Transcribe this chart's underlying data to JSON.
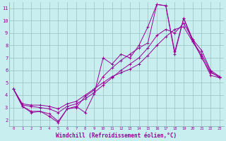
{
  "xlabel": "Windchill (Refroidissement éolien,°C)",
  "xlim": [
    -0.5,
    23.5
  ],
  "ylim": [
    1.5,
    11.5
  ],
  "xticks": [
    0,
    1,
    2,
    3,
    4,
    5,
    6,
    7,
    8,
    9,
    10,
    11,
    12,
    13,
    14,
    15,
    16,
    17,
    18,
    19,
    20,
    21,
    22,
    23
  ],
  "yticks": [
    2,
    3,
    4,
    5,
    6,
    7,
    8,
    9,
    10,
    11
  ],
  "bg_color": "#c8eef0",
  "grid_color": "#9bbfbf",
  "line_color": "#990099",
  "lines": [
    [
      4.5,
      3.1,
      2.6,
      2.7,
      2.3,
      1.8,
      2.9,
      3.1,
      2.6,
      4.1,
      7.0,
      6.5,
      7.3,
      7.0,
      8.0,
      9.5,
      11.3,
      11.2,
      7.5,
      10.2,
      8.5,
      7.0,
      5.8,
      5.5
    ],
    [
      4.5,
      3.1,
      2.7,
      2.7,
      2.5,
      1.9,
      2.9,
      3.0,
      3.9,
      4.4,
      5.5,
      6.2,
      6.8,
      7.3,
      7.8,
      8.2,
      11.3,
      11.2,
      7.3,
      10.2,
      8.3,
      7.1,
      5.6,
      5.4
    ],
    [
      4.5,
      3.2,
      3.1,
      3.0,
      2.9,
      2.6,
      3.1,
      3.3,
      3.7,
      4.2,
      4.8,
      5.4,
      6.0,
      6.5,
      7.0,
      7.8,
      8.8,
      9.3,
      9.0,
      9.8,
      8.5,
      7.6,
      6.0,
      5.5
    ],
    [
      4.5,
      3.3,
      3.2,
      3.2,
      3.1,
      2.9,
      3.3,
      3.5,
      4.0,
      4.5,
      5.0,
      5.5,
      5.8,
      6.1,
      6.5,
      7.2,
      8.0,
      8.7,
      9.3,
      9.5,
      8.3,
      7.3,
      5.9,
      5.4
    ]
  ]
}
